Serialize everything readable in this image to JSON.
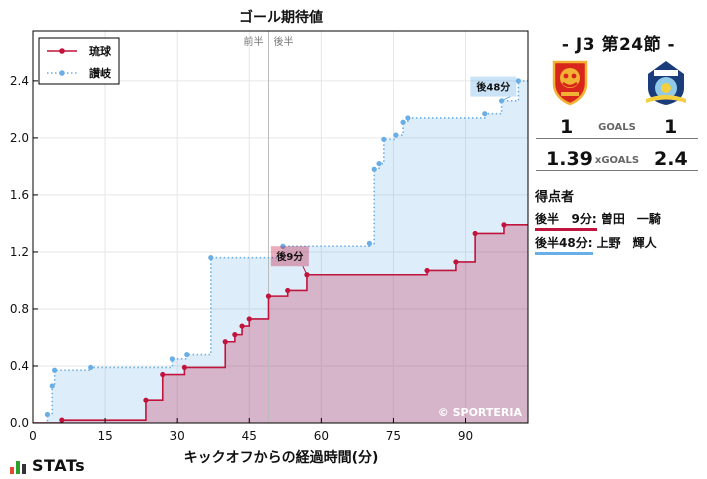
{
  "chart_data": {
    "type": "line",
    "title": "ゴール期待値",
    "xlabel": "キックオフからの経過時間(分)",
    "ylabel": "",
    "xlim": [
      0,
      103
    ],
    "ylim": [
      0,
      2.75
    ],
    "xticks": [
      0,
      15,
      30,
      45,
      60,
      75,
      90
    ],
    "yticks": [
      0.0,
      0.4,
      0.8,
      1.2,
      1.6,
      2.0,
      2.4
    ],
    "xtick_labels": [
      "0",
      "15",
      "30",
      "45",
      "60",
      "75",
      "90"
    ],
    "ytick_labels": [
      "0.0",
      "0.4",
      "0.8",
      "1.2",
      "1.6",
      "2.0",
      "2.4"
    ],
    "halftime_minute": 49,
    "half_labels": [
      "前半",
      "後半"
    ],
    "watermark": "© SPORTERIA",
    "grid": true,
    "legend_position": "top-left",
    "series": [
      {
        "name": "琉球",
        "color": "#c0143c",
        "fill": "rgba(192, 20, 60, 0.26)",
        "style": "solid",
        "x": [
          0,
          6,
          23.5,
          27,
          31.5,
          40,
          42,
          43.5,
          45,
          49,
          53,
          57,
          82,
          88,
          92,
          98,
          103
        ],
        "y": [
          0,
          0.02,
          0.16,
          0.34,
          0.39,
          0.57,
          0.62,
          0.68,
          0.73,
          0.89,
          0.93,
          1.04,
          1.07,
          1.13,
          1.33,
          1.39,
          1.39
        ]
      },
      {
        "name": "讃岐",
        "color": "#6aaee6",
        "fill": "rgba(106, 174, 230, 0.22)",
        "style": "dotted",
        "x": [
          0,
          3,
          4,
          4.5,
          12,
          29,
          32,
          37,
          52,
          70,
          71,
          72,
          73,
          75.5,
          77,
          78,
          94,
          97.5,
          101,
          103
        ],
        "y": [
          0,
          0.06,
          0.26,
          0.37,
          0.39,
          0.45,
          0.48,
          1.16,
          1.24,
          1.26,
          1.78,
          1.82,
          1.99,
          2.02,
          2.11,
          2.14,
          2.17,
          2.26,
          2.4,
          2.4
        ]
      }
    ],
    "annotations": [
      {
        "label": "後9分",
        "series": 0,
        "x": 57,
        "y": 1.04,
        "box_x": 49.5,
        "box_y": 1.17
      },
      {
        "label": "後48分",
        "series": 1,
        "x": 97.5,
        "y": 2.26,
        "box_x": 91,
        "box_y": 2.36
      }
    ]
  },
  "match": {
    "title": "- J3 第24節 -",
    "home_goals": "1",
    "away_goals": "1",
    "goals_label": "GOALS",
    "home_xg": "1.39",
    "away_xg": "2.4",
    "xg_label": "xGOALS",
    "scorers_title": "得点者",
    "home_scorer_time": "後半   9分:",
    "home_scorer_name": " 曽田　一騎",
    "away_scorer_time": "後半48分:",
    "away_scorer_name": " 上野　輝人"
  },
  "branding": {
    "logo_text": "STATs"
  }
}
